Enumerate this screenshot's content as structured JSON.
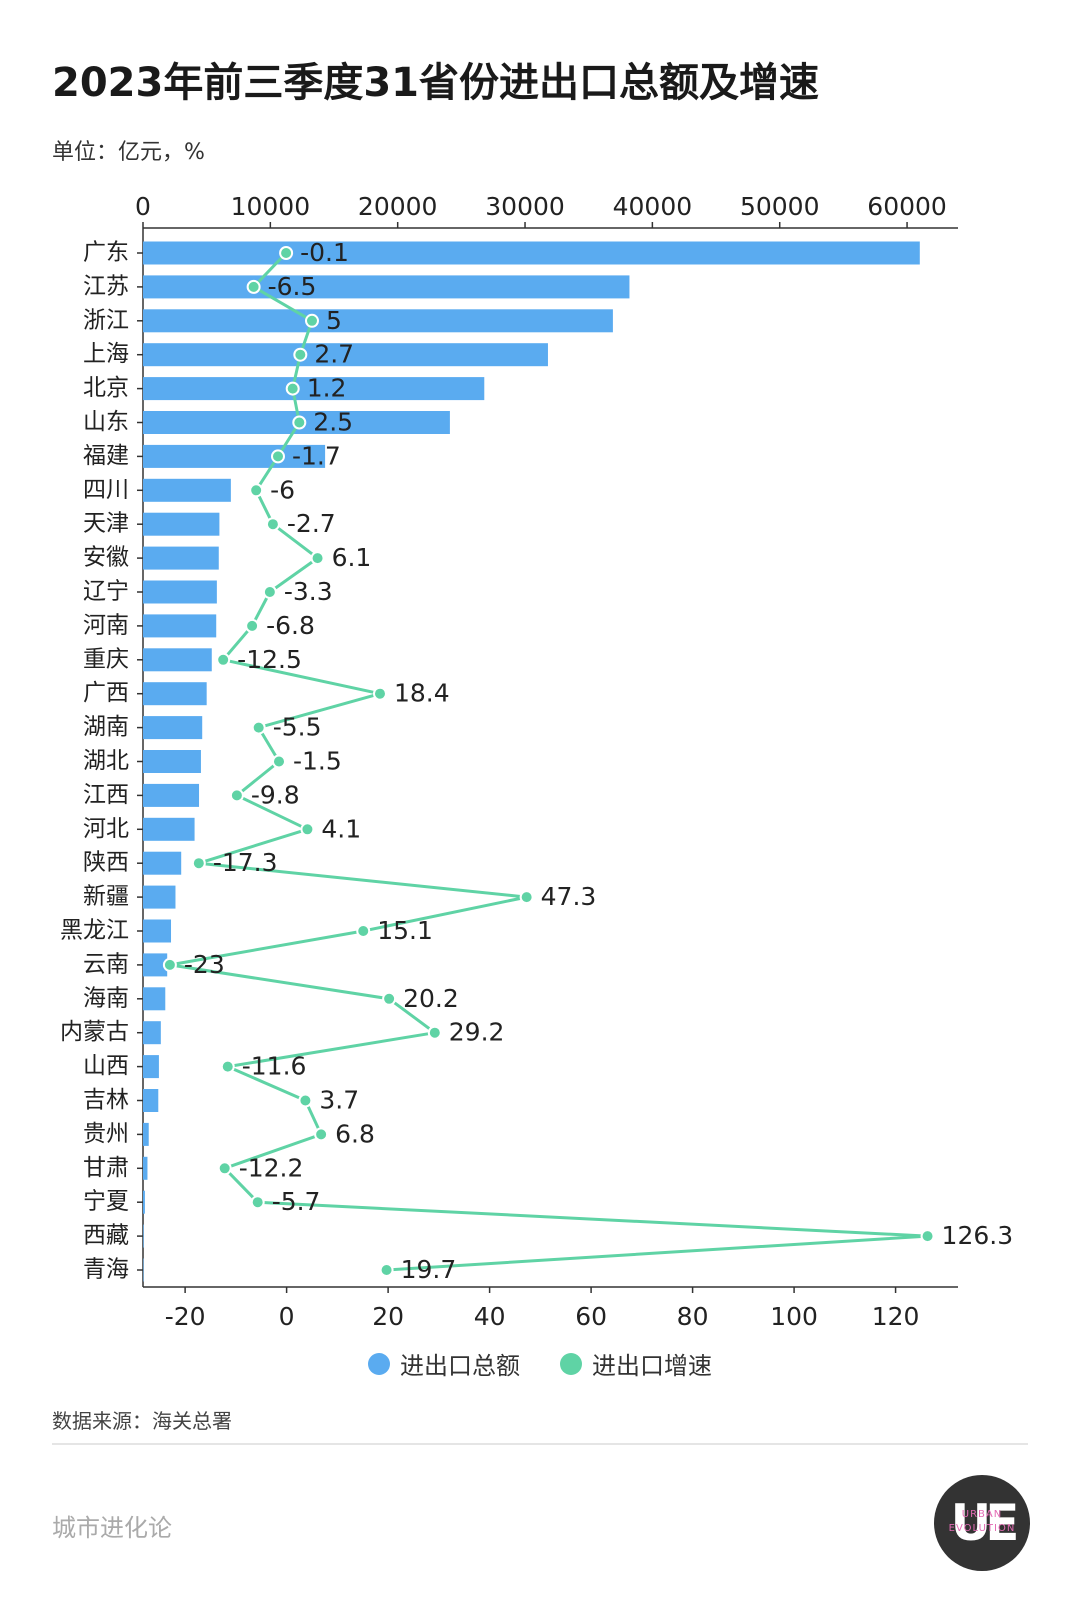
{
  "title": "2023年前三季度31省份进出口总额及增速",
  "unit_label": "单位：亿元，%",
  "source": "数据来源：海关总署",
  "brand": "城市进化论",
  "logo": {
    "mark": "UE",
    "text_line1": "URBAN",
    "text_line2": "EVOLUTION"
  },
  "colors": {
    "bar": "#5aabf0",
    "line": "#5fd3a5",
    "axis": "#333333",
    "text": "#222222"
  },
  "legend": {
    "bar_label": "进出口总额",
    "line_label": "进出口增速"
  },
  "chart_data": {
    "type": "bar",
    "orientation": "horizontal",
    "categories": [
      "广东",
      "江苏",
      "浙江",
      "上海",
      "北京",
      "山东",
      "福建",
      "四川",
      "天津",
      "安徽",
      "辽宁",
      "河南",
      "重庆",
      "广西",
      "湖南",
      "湖北",
      "江西",
      "河北",
      "陕西",
      "新疆",
      "黑龙江",
      "云南",
      "海南",
      "内蒙古",
      "山西",
      "吉林",
      "贵州",
      "甘肃",
      "宁夏",
      "西藏",
      "青海"
    ],
    "series": [
      {
        "name": "进出口总额",
        "type": "bar",
        "axis": "top",
        "values": [
          61000,
          38200,
          36900,
          31800,
          26800,
          24100,
          14300,
          6900,
          6000,
          5950,
          5800,
          5750,
          5400,
          5000,
          4650,
          4550,
          4400,
          4050,
          3000,
          2550,
          2200,
          1900,
          1750,
          1400,
          1250,
          1200,
          450,
          350,
          150,
          50,
          40
        ]
      },
      {
        "name": "进出口增速",
        "type": "line",
        "axis": "bottom",
        "values": [
          -0.1,
          -6.5,
          5,
          2.7,
          1.2,
          2.5,
          -1.7,
          -6,
          -2.7,
          6.1,
          -3.3,
          -6.8,
          -12.5,
          18.4,
          -5.5,
          -1.5,
          -9.8,
          4.1,
          -17.3,
          47.3,
          15.1,
          -23,
          20.2,
          29.2,
          -11.6,
          3.7,
          6.8,
          -12.2,
          -5.7,
          126.3,
          19.7
        ]
      }
    ],
    "x_top": {
      "lim": [
        0,
        64000
      ],
      "ticks": [
        0,
        10000,
        20000,
        30000,
        40000,
        50000,
        60000
      ],
      "tick_labels": [
        "0",
        "10000",
        "20000",
        "30000",
        "40000",
        "50000",
        "60000"
      ]
    },
    "x_bottom": {
      "lim": [
        -28.3,
        132.3
      ],
      "ticks": [
        -20,
        0,
        20,
        40,
        60,
        80,
        100,
        120
      ],
      "tick_labels": [
        "-20",
        "0",
        "20",
        "40",
        "60",
        "80",
        "100",
        "120"
      ]
    },
    "data_labels": [
      "-0.1",
      "-6.5",
      "5",
      "2.7",
      "1.2",
      "2.5",
      "-1.7",
      "-6",
      "-2.7",
      "6.1",
      "-3.3",
      "-6.8",
      "-12.5",
      "18.4",
      "-5.5",
      "-1.5",
      "-9.8",
      "4.1",
      "-17.3",
      "47.3",
      "15.1",
      "-23",
      "20.2",
      "29.2",
      "-11.6",
      "3.7",
      "6.8",
      "-12.2",
      "-5.7",
      "126.3",
      "19.7"
    ],
    "legend_position": "bottom",
    "grid": false
  }
}
